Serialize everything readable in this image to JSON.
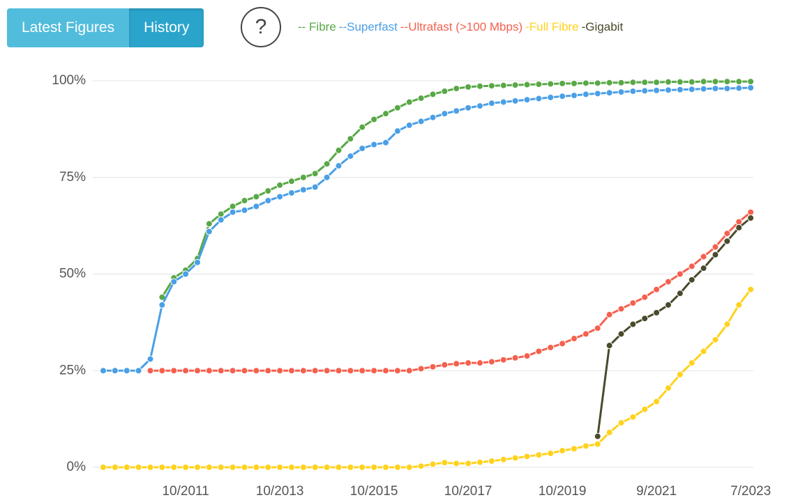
{
  "ui": {
    "buttons": [
      "Latest Figures",
      "History"
    ],
    "help": "?"
  },
  "chart_data": {
    "type": "line",
    "categories": [
      null,
      null,
      null,
      null,
      null,
      null,
      null,
      "10/2011",
      null,
      null,
      null,
      null,
      null,
      null,
      null,
      "10/2013",
      null,
      null,
      null,
      null,
      null,
      null,
      null,
      "10/2015",
      null,
      null,
      null,
      null,
      null,
      null,
      null,
      "10/2017",
      null,
      null,
      null,
      null,
      null,
      null,
      null,
      "10/2019",
      null,
      null,
      null,
      null,
      null,
      null,
      null,
      "9/2021",
      null,
      null,
      null,
      null,
      null,
      null,
      null,
      "7/2023"
    ],
    "ylim": [
      0,
      100
    ],
    "yticks": [
      {
        "value": 0,
        "label": "0%"
      },
      {
        "value": 25,
        "label": "25%"
      },
      {
        "value": 50,
        "label": "50%"
      },
      {
        "value": 75,
        "label": "75%"
      },
      {
        "value": 100,
        "label": "100%"
      }
    ],
    "grid": true,
    "series": [
      {
        "name": "-- Fibre",
        "color": "#58a846",
        "values": [
          null,
          null,
          null,
          null,
          null,
          44,
          49,
          51,
          54,
          63,
          65.5,
          67.5,
          69,
          70,
          71.5,
          73,
          74,
          75,
          76,
          78.5,
          82,
          85,
          88,
          90,
          91.5,
          93,
          94.5,
          95.5,
          96.5,
          97.3,
          98,
          98.4,
          98.6,
          98.7,
          98.8,
          98.9,
          99,
          99.1,
          99.2,
          99.3,
          99.3,
          99.4,
          99.4,
          99.5,
          99.5,
          99.6,
          99.6,
          99.6,
          99.7,
          99.7,
          99.7,
          99.8,
          99.8,
          99.8,
          99.8,
          99.8
        ]
      },
      {
        "name": "--Superfast",
        "color": "#4a9fe6",
        "values": [
          25,
          25,
          25,
          25,
          28,
          42,
          48,
          50,
          53,
          61,
          64,
          66,
          66.5,
          67.5,
          69,
          70,
          71,
          71.8,
          72.5,
          75,
          78,
          80.5,
          82.5,
          83.5,
          84,
          87,
          88.5,
          89.5,
          90.5,
          91.5,
          92.2,
          93,
          93.5,
          94.2,
          94.5,
          94.8,
          95.1,
          95.4,
          95.7,
          96,
          96.2,
          96.5,
          96.7,
          96.9,
          97.1,
          97.3,
          97.4,
          97.5,
          97.6,
          97.7,
          97.8,
          97.9,
          98,
          98,
          98.1,
          98.2
        ]
      },
      {
        "name": "--Ultrafast (>100 Mbps)",
        "color": "#f5604e",
        "values": [
          null,
          null,
          null,
          null,
          25,
          25,
          25,
          25,
          25,
          25,
          25,
          25,
          25,
          25,
          25,
          25,
          25,
          25,
          25,
          25,
          25,
          25,
          25,
          25,
          25,
          25,
          25,
          25.5,
          26,
          26.5,
          26.8,
          27,
          27,
          27.3,
          27.8,
          28.3,
          28.8,
          30,
          31,
          32,
          33.3,
          34.5,
          36,
          39.5,
          41,
          42.5,
          44,
          46,
          48,
          50,
          52,
          54.5,
          57,
          60.5,
          63.5,
          66
        ]
      },
      {
        "name": "-Full Fibre",
        "color": "#ffd21c",
        "values": [
          0,
          0,
          0,
          0,
          0,
          0,
          0,
          0,
          0,
          0,
          0,
          0,
          0,
          0,
          0,
          0,
          0,
          0,
          0,
          0,
          0,
          0,
          0,
          0,
          0,
          0,
          0,
          0.3,
          0.8,
          1.2,
          1,
          1,
          1.3,
          1.6,
          2,
          2.4,
          2.8,
          3.2,
          3.6,
          4.3,
          4.8,
          5.5,
          6,
          9,
          11.5,
          13,
          15,
          17,
          20.5,
          24,
          27,
          30,
          33,
          37,
          42,
          46
        ]
      },
      {
        "name": "-Gigabit",
        "color": "#4a4a2c",
        "values": [
          null,
          null,
          null,
          null,
          null,
          null,
          null,
          null,
          null,
          null,
          null,
          null,
          null,
          null,
          null,
          null,
          null,
          null,
          null,
          null,
          null,
          null,
          null,
          null,
          null,
          null,
          null,
          null,
          null,
          null,
          null,
          null,
          null,
          null,
          null,
          null,
          null,
          null,
          null,
          null,
          null,
          null,
          8,
          31.5,
          34.5,
          37,
          38.5,
          40,
          42,
          45,
          48.5,
          51.5,
          55,
          58.5,
          62,
          64.5
        ]
      }
    ]
  }
}
